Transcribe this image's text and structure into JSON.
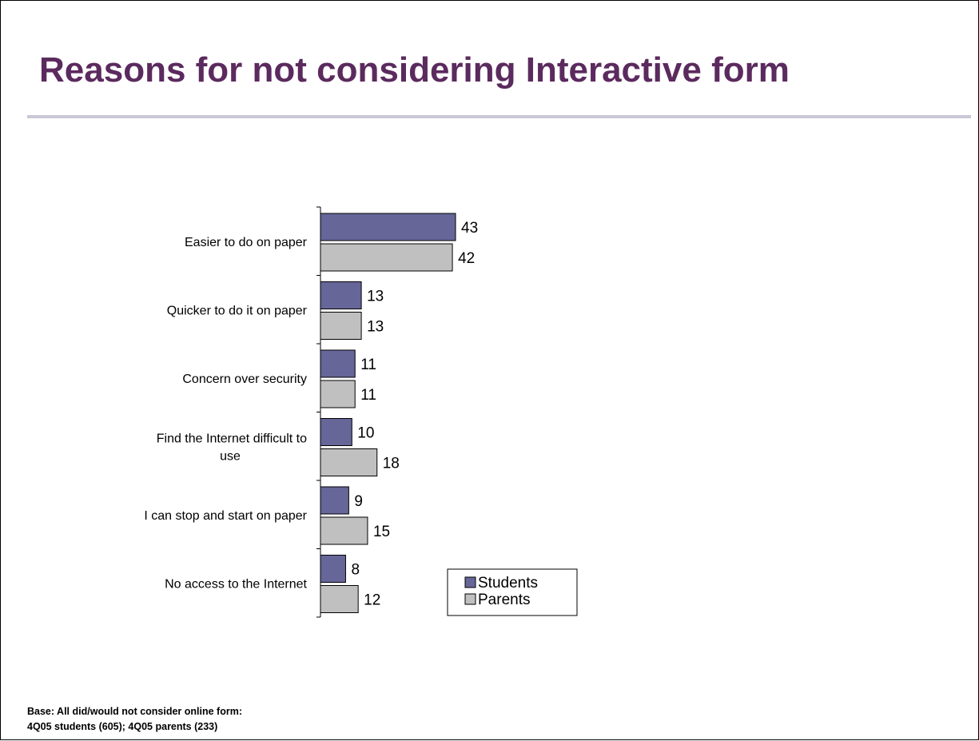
{
  "title": "Reasons for not considering Interactive form",
  "base_note": {
    "line1": "Base:  All did/would not consider online form:",
    "line2": "4Q05 students (605); 4Q05 parents (233)"
  },
  "colors": {
    "title": "#5b2a5e",
    "rule": "#c9c8d6",
    "students": "#666699",
    "parents": "#c0c0c0"
  },
  "chart_data": {
    "type": "bar",
    "orientation": "horizontal",
    "title": "",
    "xlabel": "",
    "ylabel": "",
    "xlim": [
      0,
      43
    ],
    "grid": false,
    "legend_position": "bottom-right",
    "categories": [
      "Easier to do on paper",
      "Quicker to do it on paper",
      "Concern over security",
      "Find the Internet difficult to use",
      "I can stop and start on paper",
      "No access to the Internet"
    ],
    "category_lines": [
      [
        "Easier to do on paper"
      ],
      [
        "Quicker to do it on paper"
      ],
      [
        "Concern over security"
      ],
      [
        "Find the Internet difficult to",
        "use"
      ],
      [
        "I can stop and start on paper"
      ],
      [
        "No access to the Internet"
      ]
    ],
    "series": [
      {
        "name": "Students",
        "color": "#666699",
        "values": [
          43,
          13,
          11,
          10,
          9,
          8
        ]
      },
      {
        "name": "Parents",
        "color": "#c0c0c0",
        "values": [
          42,
          13,
          11,
          18,
          15,
          12
        ]
      }
    ]
  }
}
